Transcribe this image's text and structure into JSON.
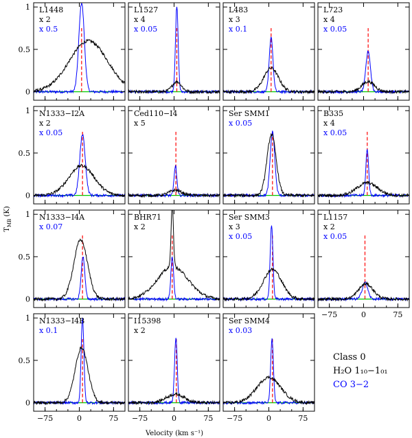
{
  "chart_data": {
    "type": "line",
    "title": "",
    "xlabel": "Velocity (km s⁻¹)",
    "ylabel": "T_MB (K)",
    "ylabel_main": "T",
    "ylabel_sub": "MB",
    "ylabel_unit": " (K)",
    "xlim": [
      -100,
      100
    ],
    "ylim": [
      -0.1,
      1.05
    ],
    "x_ticks": [
      -75,
      0,
      75
    ],
    "x_tick_labels": [
      "−75",
      "0",
      "75"
    ],
    "y_ticks": [
      0,
      0.5,
      1
    ],
    "y_tick_labels": [
      "0",
      "0.5",
      "1"
    ],
    "colors": {
      "h2o": "#000000",
      "co": "#0000ff",
      "gaussian": "#00cc00",
      "vlsr": "#ff0000"
    },
    "legend": {
      "class_label": "Class 0",
      "h2o_label": "H₂O 1₁₀−1₀₁",
      "co_label": "CO 3−2"
    },
    "series_names": [
      "H2O 1_10-1_01",
      "CO 3-2"
    ],
    "panels": [
      {
        "name": "L1448",
        "h2o_scale": "x 2",
        "co_scale": "x 0.5",
        "h2o_peak": 0.6,
        "h2o_width": 42,
        "h2o_center": 20,
        "co_peak": 1.05,
        "co_width": 6,
        "co_center": 5,
        "narrow_peak": 0,
        "vlsr": 5
      },
      {
        "name": "L1527",
        "h2o_scale": "x 4",
        "co_scale": "x 0.05",
        "h2o_peak": 0.12,
        "h2o_width": 10,
        "h2o_center": 6,
        "co_peak": 1.0,
        "co_width": 3,
        "co_center": 6,
        "narrow_peak": 0,
        "vlsr": 6
      },
      {
        "name": "L483",
        "h2o_scale": "x 3",
        "co_scale": "x 0.1",
        "h2o_peak": 0.28,
        "h2o_width": 16,
        "h2o_center": 5,
        "co_peak": 0.65,
        "co_width": 4,
        "co_center": 5,
        "narrow_peak": 0,
        "vlsr": 5
      },
      {
        "name": "L723",
        "h2o_scale": "x 4",
        "co_scale": "x 0.05",
        "h2o_peak": 0.12,
        "h2o_width": 14,
        "h2o_center": 10,
        "co_peak": 0.48,
        "co_width": 5,
        "co_center": 10,
        "narrow_peak": 0,
        "vlsr": 10
      },
      {
        "name": "N1333−I2A",
        "h2o_scale": "x 2",
        "co_scale": "x 0.05",
        "h2o_peak": 0.35,
        "h2o_width": 28,
        "h2o_center": 5,
        "co_peak": 0.72,
        "co_width": 6,
        "co_center": 7,
        "narrow_peak": 0,
        "vlsr": 7
      },
      {
        "name": "Ced110−I4",
        "h2o_scale": "x 5",
        "co_scale": "",
        "h2o_peak": 0.06,
        "h2o_width": 14,
        "h2o_center": 3,
        "co_peak": 0.35,
        "co_width": 3,
        "co_center": 3,
        "narrow_peak": 0,
        "vlsr": 4
      },
      {
        "name": "Ser SMM1",
        "h2o_scale": "",
        "co_scale": "x 0.05",
        "h2o_peak": 0.72,
        "h2o_width": 10,
        "h2o_center": 6,
        "co_peak": 0.75,
        "co_width": 5,
        "co_center": 8,
        "narrow_peak": 0,
        "vlsr": 8
      },
      {
        "name": "B335",
        "h2o_scale": "x 4",
        "co_scale": "x 0.05",
        "h2o_peak": 0.15,
        "h2o_width": 22,
        "h2o_center": 8,
        "co_peak": 0.55,
        "co_width": 3,
        "co_center": 8,
        "narrow_peak": 0,
        "vlsr": 8
      },
      {
        "name": "N1333−I4A",
        "h2o_scale": "",
        "co_scale": "x 0.07",
        "h2o_peak": 0.7,
        "h2o_width": 15,
        "h2o_center": 3,
        "co_peak": 0.5,
        "co_width": 4,
        "co_center": 8,
        "narrow_peak": 0,
        "vlsr": 7
      },
      {
        "name": "BHR71",
        "h2o_scale": "x 2",
        "co_scale": "",
        "h2o_peak": 0.38,
        "h2o_width": 34,
        "h2o_center": -3,
        "co_peak": 0.5,
        "co_width": 3,
        "co_center": -4,
        "narrow_peak": 0.75,
        "vlsr": -4
      },
      {
        "name": "Ser SMM3",
        "h2o_scale": "x 3",
        "co_scale": "x 0.05",
        "h2o_peak": 0.35,
        "h2o_width": 20,
        "h2o_center": 8,
        "co_peak": 0.88,
        "co_width": 3,
        "co_center": 6,
        "narrow_peak": 0,
        "vlsr": 8
      },
      {
        "name": "L1157",
        "h2o_scale": "x 2",
        "co_scale": "x 0.05",
        "h2o_peak": 0.18,
        "h2o_width": 16,
        "h2o_center": 5,
        "co_peak": 0.2,
        "co_width": 6,
        "co_center": 3,
        "narrow_peak": 0,
        "vlsr": 3
      },
      {
        "name": "N1333−I4B",
        "h2o_scale": "",
        "co_scale": "x 0.1",
        "h2o_peak": 0.65,
        "h2o_width": 14,
        "h2o_center": 5,
        "co_peak": 1.0,
        "co_width": 3,
        "co_center": 7,
        "narrow_peak": 0,
        "vlsr": 7
      },
      {
        "name": "I15398",
        "h2o_scale": "x 2",
        "co_scale": "",
        "h2o_peak": 0.1,
        "h2o_width": 20,
        "h2o_center": 3,
        "co_peak": 0.76,
        "co_width": 3,
        "co_center": 4,
        "narrow_peak": 0,
        "vlsr": 5
      },
      {
        "name": "Ser SMM4",
        "h2o_scale": "",
        "co_scale": "x 0.03",
        "h2o_peak": 0.3,
        "h2o_width": 26,
        "h2o_center": 0,
        "co_peak": 0.75,
        "co_width": 3,
        "co_center": 7,
        "narrow_peak": 0,
        "vlsr": 8
      }
    ]
  }
}
